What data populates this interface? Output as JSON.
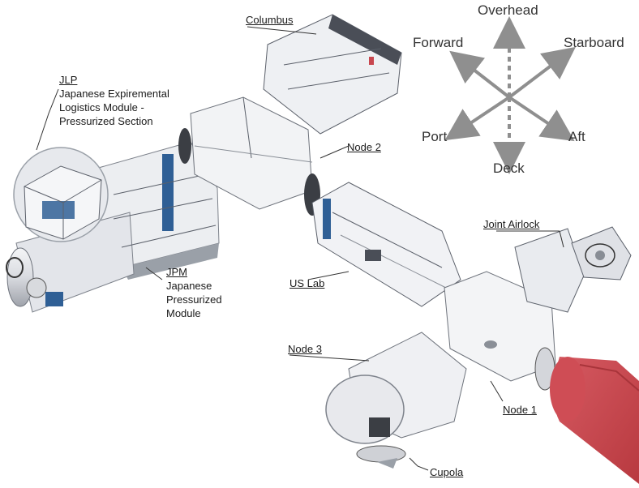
{
  "modules": {
    "columbus": "Columbus",
    "jlp": {
      "code": "JLP",
      "line1": "Japanese Expiremental",
      "line2": "Logistics Module -",
      "line3": "Pressurized Section"
    },
    "node2": "Node 2",
    "jpm": {
      "code": "JPM",
      "line1": "Japanese",
      "line2": "Pressurized",
      "line3": "Module"
    },
    "us_lab": "US Lab",
    "joint_airlock": "Joint Airlock",
    "node3": "Node 3",
    "node1": "Node 1",
    "cupola": "Cupola"
  },
  "compass": {
    "overhead": "Overhead",
    "forward": "Forward",
    "starboard": "Starboard",
    "port": "Port",
    "aft": "Aft",
    "deck": "Deck"
  },
  "colors": {
    "module_wall": "#e9eaee",
    "module_dark": "#4a4e57",
    "accent_blue": "#2f5f95",
    "red_module": "#c8474f",
    "arrow_gray": "#8f8f8f"
  }
}
